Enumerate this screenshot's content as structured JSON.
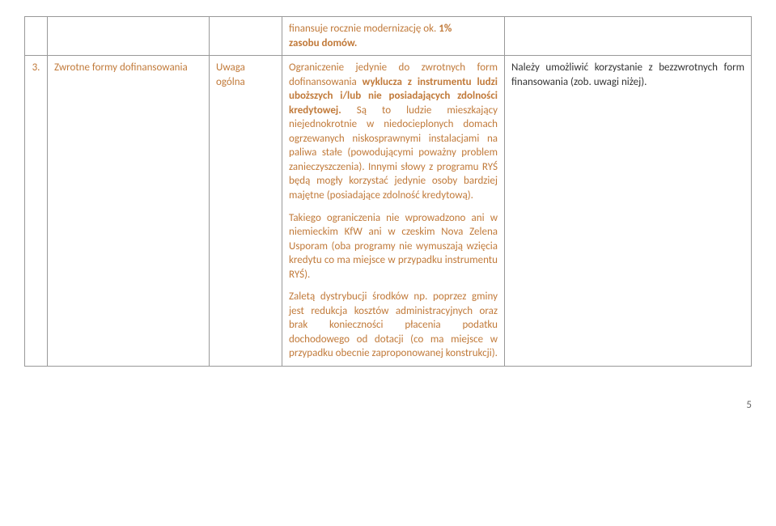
{
  "row1": {
    "col4": {
      "line1_prefix": "finansuje rocznie modernizację ok. ",
      "line1_bold": "1%",
      "line2_bold": "zasobu domów."
    }
  },
  "row2": {
    "num": "3.",
    "title": "Zwrotne formy dofinansowania",
    "note": "Uwaga ogólna",
    "col4": {
      "p1_a": "Ograniczenie jedynie do zwrotnych form dofinansowania ",
      "p1_b": "wyklucza z instrumentu ludzi uboższych i/lub nie posiadających zdolności kredytowej.",
      "p1_c": " Są to ludzie mieszkający niejednokrotnie w niedocieplonych domach ogrzewanych niskosprawnymi instalacjami na paliwa stałe (powodującymi poważny problem zanieczyszczenia). Innymi słowy z programu RYŚ będą mogły korzystać jedynie osoby bardziej majętne (posiadające zdolność kredytową).",
      "p2": "Takiego ograniczenia nie wprowadzono ani w niemieckim KfW ani w czeskim Nova Zelena Usporam (oba programy nie wymuszają wzięcia kredytu co ma miejsce w przypadku instrumentu RYŚ).",
      "p3": "Zaletą dystrybucji środków np. poprzez gminy jest redukcja kosztów administracyjnych oraz brak konieczności płacenia podatku dochodowego od dotacji (co ma miejsce w przypadku obecnie zaproponowanej konstrukcji)."
    },
    "col5": {
      "p1": "Należy umożliwić korzystanie z bezzwrotnych form finansowania (zob. uwagi niżej)."
    }
  },
  "pagenum": "5"
}
